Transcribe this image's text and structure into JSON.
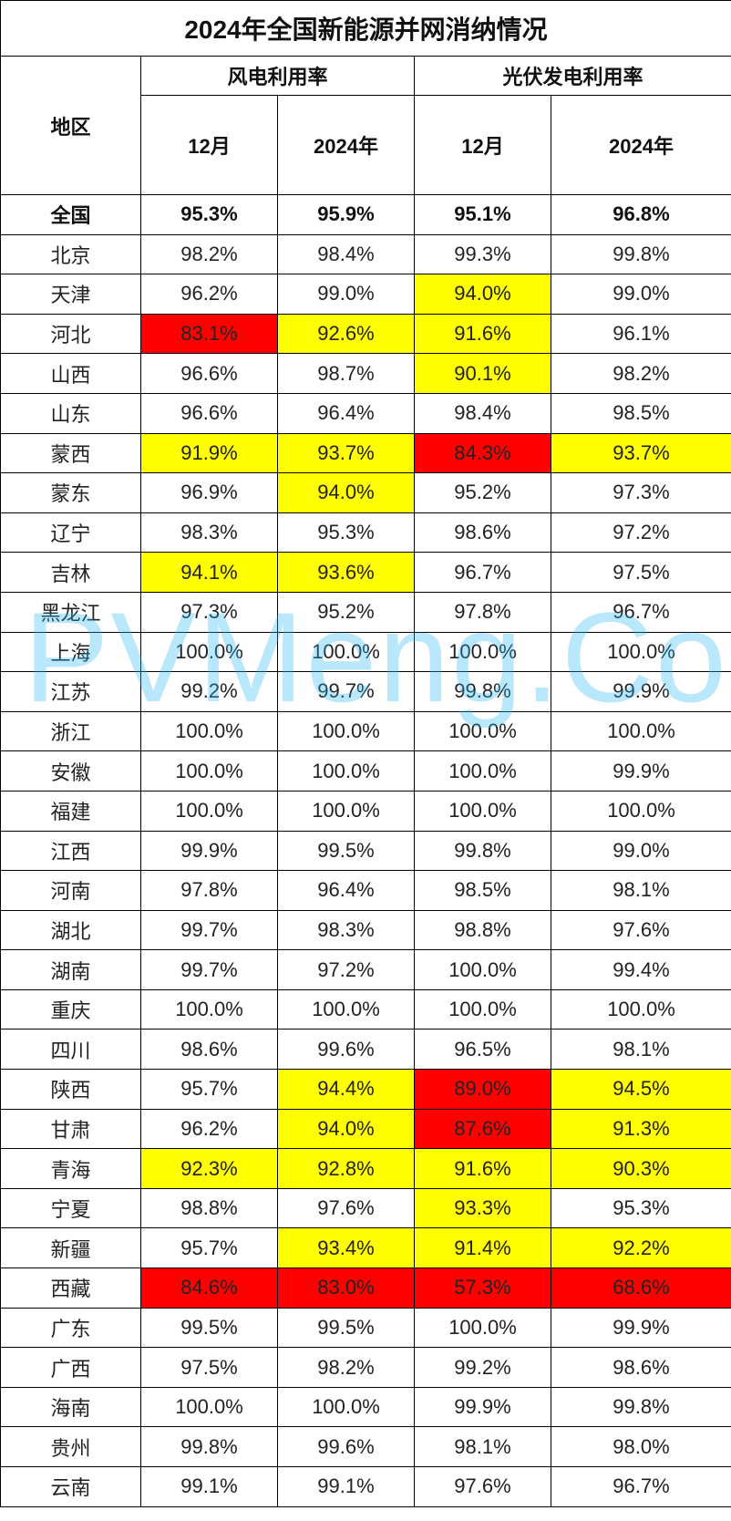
{
  "title": "2024年全国新能源并网消纳情况",
  "headers": {
    "region": "地区",
    "wind": "风电利用率",
    "solar": "光伏发电利用率",
    "wind_dec": "12月",
    "wind_year": "2024年",
    "solar_dec": "12月",
    "solar_year": "2024年"
  },
  "highlight_colors": {
    "yellow": "#ffff00",
    "red": "#ff0000"
  },
  "watermark": "PVMeng.Com",
  "rows": [
    {
      "region": "全国",
      "values": [
        "95.3%",
        "95.9%",
        "95.1%",
        "96.8%"
      ],
      "hl": [
        "",
        "",
        "",
        ""
      ]
    },
    {
      "region": "北京",
      "values": [
        "98.2%",
        "98.4%",
        "99.3%",
        "99.8%"
      ],
      "hl": [
        "",
        "",
        "",
        ""
      ]
    },
    {
      "region": "天津",
      "values": [
        "96.2%",
        "99.0%",
        "94.0%",
        "99.0%"
      ],
      "hl": [
        "",
        "",
        "yellow",
        ""
      ]
    },
    {
      "region": "河北",
      "values": [
        "83.1%",
        "92.6%",
        "91.6%",
        "96.1%"
      ],
      "hl": [
        "red",
        "yellow",
        "yellow",
        ""
      ]
    },
    {
      "region": "山西",
      "values": [
        "96.6%",
        "98.7%",
        "90.1%",
        "98.2%"
      ],
      "hl": [
        "",
        "",
        "yellow",
        ""
      ]
    },
    {
      "region": "山东",
      "values": [
        "96.6%",
        "96.4%",
        "98.4%",
        "98.5%"
      ],
      "hl": [
        "",
        "",
        "",
        ""
      ]
    },
    {
      "region": "蒙西",
      "values": [
        "91.9%",
        "93.7%",
        "84.3%",
        "93.7%"
      ],
      "hl": [
        "yellow",
        "yellow",
        "red",
        "yellow"
      ]
    },
    {
      "region": "蒙东",
      "values": [
        "96.9%",
        "94.0%",
        "95.2%",
        "97.3%"
      ],
      "hl": [
        "",
        "yellow",
        "",
        ""
      ]
    },
    {
      "region": "辽宁",
      "values": [
        "98.3%",
        "95.3%",
        "98.6%",
        "97.2%"
      ],
      "hl": [
        "",
        "",
        "",
        ""
      ]
    },
    {
      "region": "吉林",
      "values": [
        "94.1%",
        "93.6%",
        "96.7%",
        "97.5%"
      ],
      "hl": [
        "yellow",
        "yellow",
        "",
        ""
      ]
    },
    {
      "region": "黑龙江",
      "values": [
        "97.3%",
        "95.2%",
        "97.8%",
        "96.7%"
      ],
      "hl": [
        "",
        "",
        "",
        ""
      ]
    },
    {
      "region": "上海",
      "values": [
        "100.0%",
        "100.0%",
        "100.0%",
        "100.0%"
      ],
      "hl": [
        "",
        "",
        "",
        ""
      ]
    },
    {
      "region": "江苏",
      "values": [
        "99.2%",
        "99.7%",
        "99.8%",
        "99.9%"
      ],
      "hl": [
        "",
        "",
        "",
        ""
      ]
    },
    {
      "region": "浙江",
      "values": [
        "100.0%",
        "100.0%",
        "100.0%",
        "100.0%"
      ],
      "hl": [
        "",
        "",
        "",
        ""
      ]
    },
    {
      "region": "安徽",
      "values": [
        "100.0%",
        "100.0%",
        "100.0%",
        "99.9%"
      ],
      "hl": [
        "",
        "",
        "",
        ""
      ]
    },
    {
      "region": "福建",
      "values": [
        "100.0%",
        "100.0%",
        "100.0%",
        "100.0%"
      ],
      "hl": [
        "",
        "",
        "",
        ""
      ]
    },
    {
      "region": "江西",
      "values": [
        "99.9%",
        "99.5%",
        "99.8%",
        "99.0%"
      ],
      "hl": [
        "",
        "",
        "",
        ""
      ]
    },
    {
      "region": "河南",
      "values": [
        "97.8%",
        "96.4%",
        "98.5%",
        "98.1%"
      ],
      "hl": [
        "",
        "",
        "",
        ""
      ]
    },
    {
      "region": "湖北",
      "values": [
        "99.7%",
        "98.3%",
        "98.8%",
        "97.6%"
      ],
      "hl": [
        "",
        "",
        "",
        ""
      ]
    },
    {
      "region": "湖南",
      "values": [
        "99.7%",
        "97.2%",
        "100.0%",
        "99.4%"
      ],
      "hl": [
        "",
        "",
        "",
        ""
      ]
    },
    {
      "region": "重庆",
      "values": [
        "100.0%",
        "100.0%",
        "100.0%",
        "100.0%"
      ],
      "hl": [
        "",
        "",
        "",
        ""
      ]
    },
    {
      "region": "四川",
      "values": [
        "98.6%",
        "99.6%",
        "96.5%",
        "98.1%"
      ],
      "hl": [
        "",
        "",
        "",
        ""
      ]
    },
    {
      "region": "陕西",
      "values": [
        "95.7%",
        "94.4%",
        "89.0%",
        "94.5%"
      ],
      "hl": [
        "",
        "yellow",
        "red",
        "yellow"
      ]
    },
    {
      "region": "甘肃",
      "values": [
        "96.2%",
        "94.0%",
        "87.6%",
        "91.3%"
      ],
      "hl": [
        "",
        "yellow",
        "red",
        "yellow"
      ]
    },
    {
      "region": "青海",
      "values": [
        "92.3%",
        "92.8%",
        "91.6%",
        "90.3%"
      ],
      "hl": [
        "yellow",
        "yellow",
        "yellow",
        "yellow"
      ]
    },
    {
      "region": "宁夏",
      "values": [
        "98.8%",
        "97.6%",
        "93.3%",
        "95.3%"
      ],
      "hl": [
        "",
        "",
        "yellow",
        ""
      ]
    },
    {
      "region": "新疆",
      "values": [
        "95.7%",
        "93.4%",
        "91.4%",
        "92.2%"
      ],
      "hl": [
        "",
        "yellow",
        "yellow",
        "yellow"
      ]
    },
    {
      "region": "西藏",
      "values": [
        "84.6%",
        "83.0%",
        "57.3%",
        "68.6%"
      ],
      "hl": [
        "red",
        "red",
        "red",
        "red"
      ]
    },
    {
      "region": "广东",
      "values": [
        "99.5%",
        "99.5%",
        "100.0%",
        "99.9%"
      ],
      "hl": [
        "",
        "",
        "",
        ""
      ]
    },
    {
      "region": "广西",
      "values": [
        "97.5%",
        "98.2%",
        "99.2%",
        "98.6%"
      ],
      "hl": [
        "",
        "",
        "",
        ""
      ]
    },
    {
      "region": "海南",
      "values": [
        "100.0%",
        "100.0%",
        "99.9%",
        "99.8%"
      ],
      "hl": [
        "",
        "",
        "",
        ""
      ]
    },
    {
      "region": "贵州",
      "values": [
        "99.8%",
        "99.6%",
        "98.1%",
        "98.0%"
      ],
      "hl": [
        "",
        "",
        "",
        ""
      ]
    },
    {
      "region": "云南",
      "values": [
        "99.1%",
        "99.1%",
        "97.6%",
        "96.7%"
      ],
      "hl": [
        "",
        "",
        "",
        ""
      ]
    }
  ]
}
